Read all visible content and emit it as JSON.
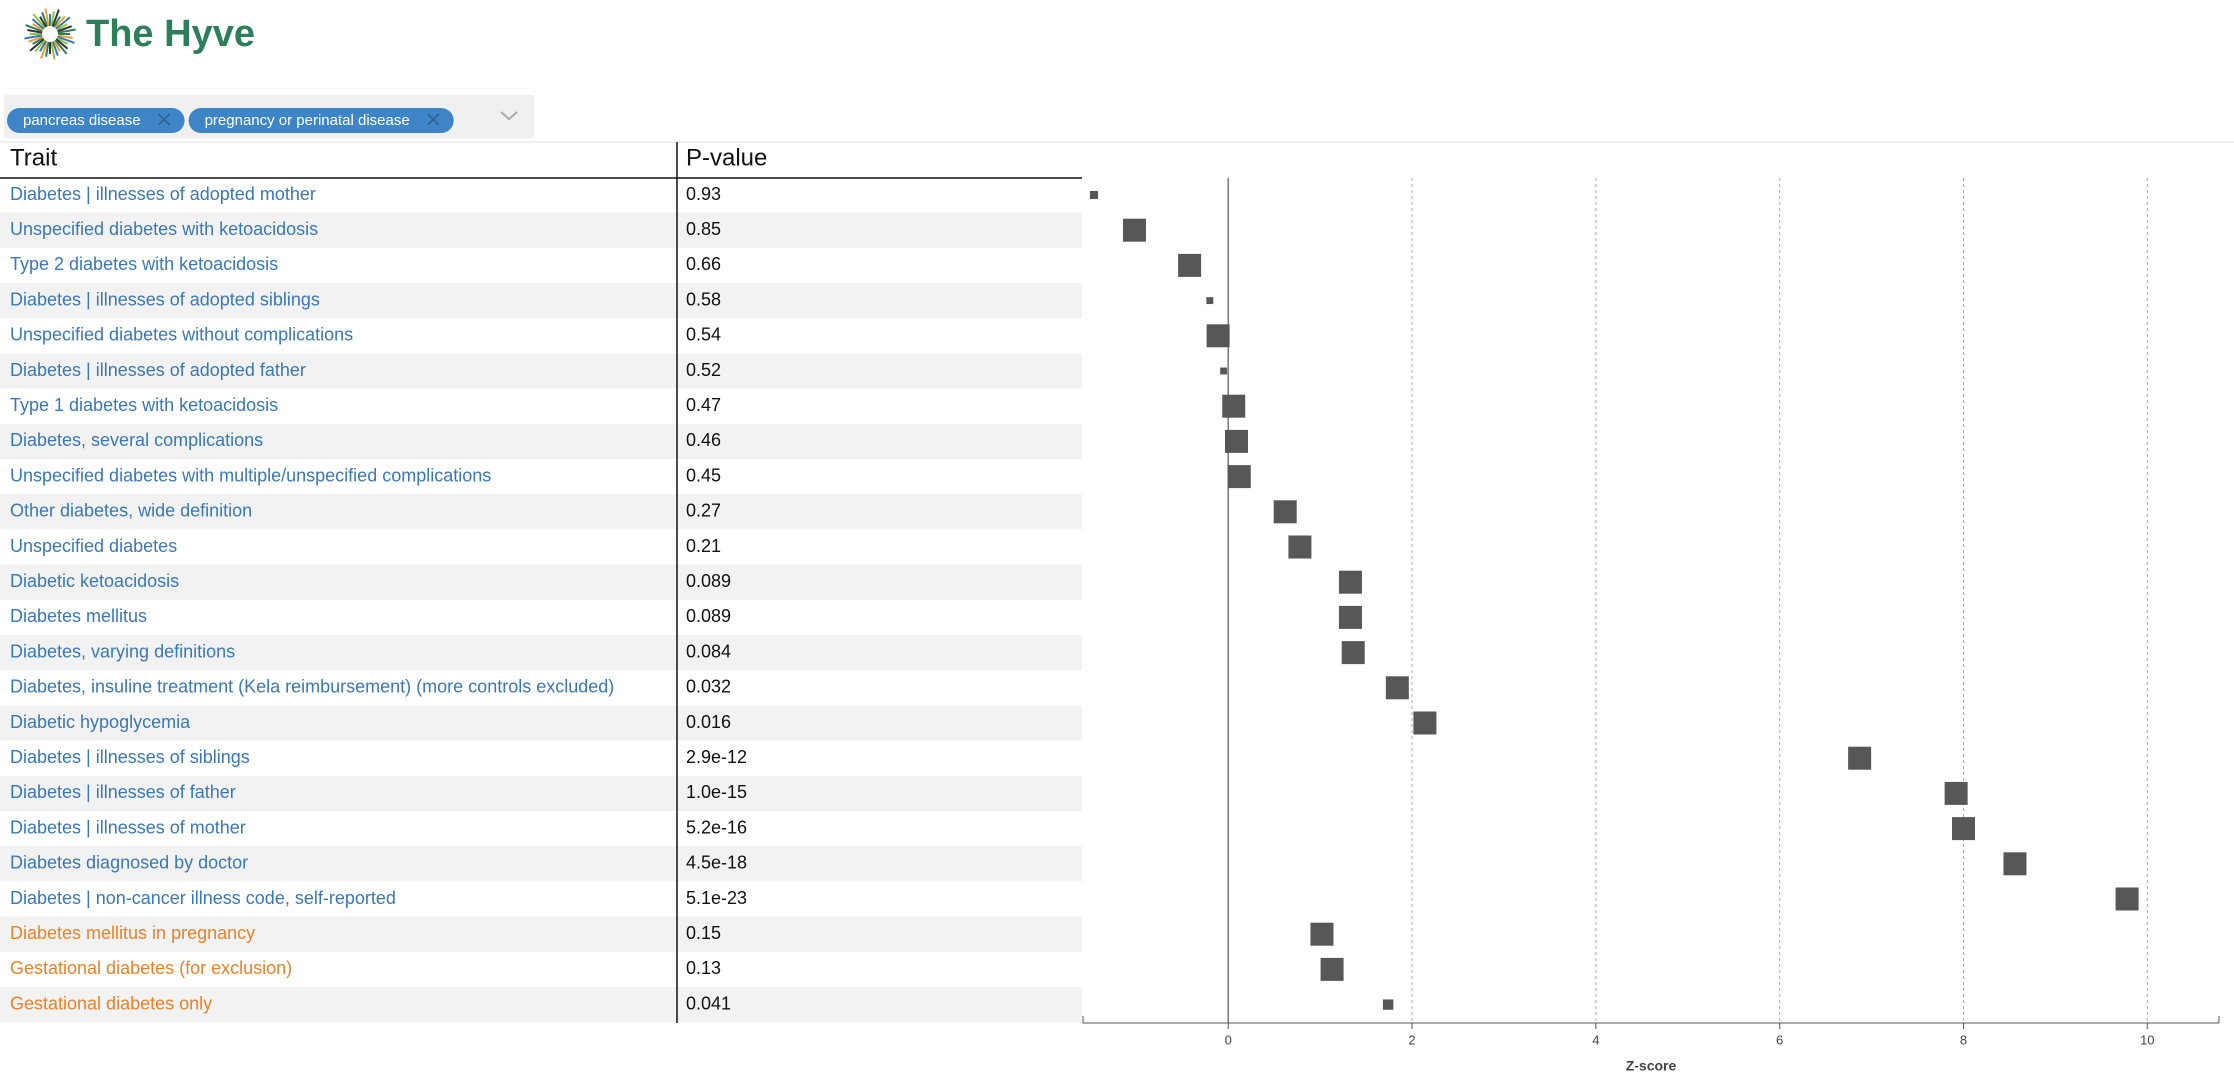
{
  "header": {
    "brand": "The Hyve"
  },
  "filters": [
    "pancreas disease",
    "pregnancy or perinatal disease"
  ],
  "table": {
    "columns": [
      "Trait",
      "P-value"
    ],
    "rows": [
      [
        "Diabetes | illnesses of adopted mother",
        "0.93"
      ],
      [
        "Unspecified diabetes with ketoacidosis",
        "0.85"
      ],
      [
        "Type 2 diabetes with ketoacidosis",
        "0.66"
      ],
      [
        "Diabetes | illnesses of adopted siblings",
        "0.58"
      ],
      [
        "Unspecified diabetes without complications",
        "0.54"
      ],
      [
        "Diabetes | illnesses of adopted father",
        "0.52"
      ],
      [
        "Type 1 diabetes with ketoacidosis",
        "0.47"
      ],
      [
        "Diabetes, several complications",
        "0.46"
      ],
      [
        "Unspecified diabetes with multiple/unspecified complications",
        "0.45"
      ],
      [
        "Other diabetes, wide definition",
        "0.27"
      ],
      [
        "Unspecified diabetes",
        "0.21"
      ],
      [
        "Diabetic ketoacidosis",
        "0.089"
      ],
      [
        "Diabetes mellitus",
        "0.089"
      ],
      [
        "Diabetes, varying definitions",
        "0.084"
      ],
      [
        "Diabetes, insuline treatment (Kela reimbursement) (more controls excluded)",
        "0.032"
      ],
      [
        "Diabetic hypoglycemia",
        "0.016"
      ],
      [
        "Diabetes | illnesses of siblings",
        "2.9e-12"
      ],
      [
        "Diabetes | illnesses of father",
        "1.0e-15"
      ],
      [
        "Diabetes | illnesses of mother",
        "5.2e-16"
      ],
      [
        "Diabetes diagnosed by doctor",
        "4.5e-18"
      ],
      [
        "Diabetes | non-cancer illness code, self-reported",
        "5.1e-23"
      ],
      [
        "Diabetes mellitus in pregnancy",
        "0.15"
      ],
      [
        "Gestational diabetes (for exclusion)",
        "0.13"
      ],
      [
        "Gestational diabetes only",
        "0.041"
      ]
    ],
    "row_colors": [
      "#3a78b5",
      "#3a78b5",
      "#3a78b5",
      "#3a78b5",
      "#3a78b5",
      "#3a78b5",
      "#3a78b5",
      "#3a78b5",
      "#3a78b5",
      "#3a78b5",
      "#3a78b5",
      "#3a78b5",
      "#3a78b5",
      "#3a78b5",
      "#3a78b5",
      "#3a78b5",
      "#3a78b5",
      "#3a78b5",
      "#3a78b5",
      "#3a78b5",
      "#3a78b5",
      "#e8822a",
      "#e8822a",
      "#e8822a"
    ]
  },
  "chart_data": {
    "type": "forest",
    "xlabel": "Z-score",
    "xlim": [
      -1.58,
      10.78
    ],
    "xticks": [
      0,
      2,
      4,
      6,
      8,
      10
    ],
    "color": "#575757",
    "values": [
      -1.46,
      -1.02,
      -0.42,
      -0.2,
      -0.11,
      -0.05,
      0.06,
      0.09,
      0.12,
      0.62,
      0.78,
      1.33,
      1.33,
      1.36,
      1.84,
      2.14,
      6.87,
      7.92,
      8.0,
      8.56,
      9.78,
      1.02,
      1.13,
      1.74
    ],
    "sizes": [
      0.35,
      1,
      1,
      0.3,
      1,
      0.3,
      1,
      1,
      1,
      1,
      1,
      1,
      1,
      1,
      1,
      1,
      1,
      1,
      1,
      1,
      1,
      1,
      1,
      0.45
    ]
  }
}
